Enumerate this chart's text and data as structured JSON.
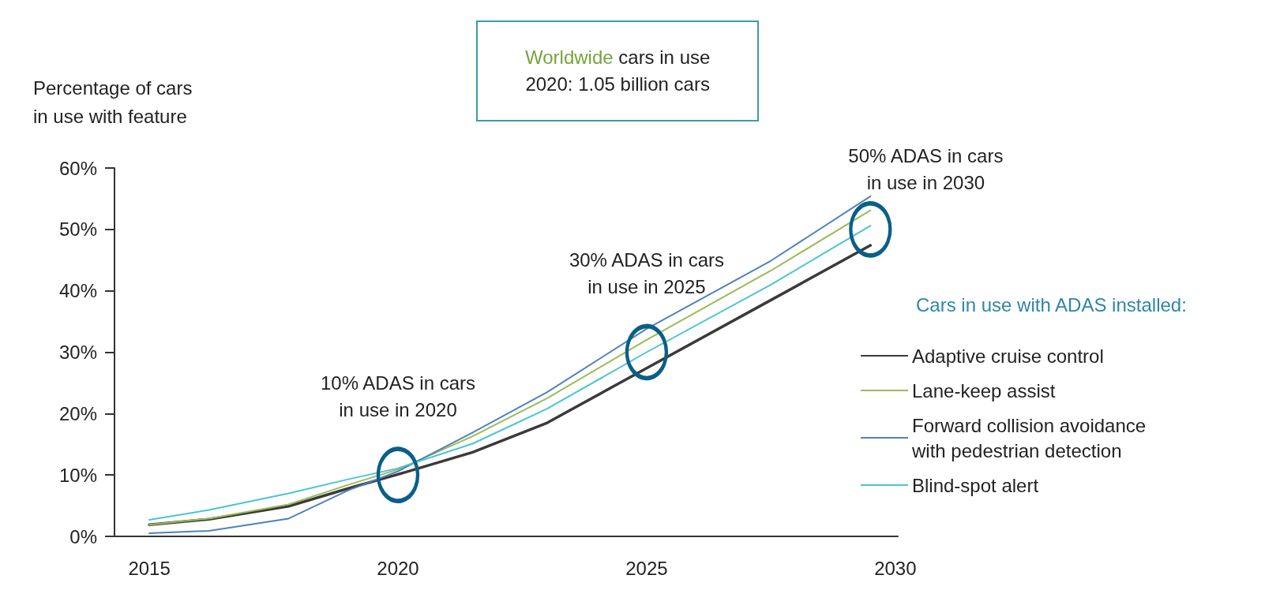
{
  "chart_data": {
    "type": "line",
    "ylabel": "Percentage of cars\nin use with feature",
    "legend_title": "Cars in use with ADAS installed:",
    "xlim": [
      2014.3,
      2030.05
    ],
    "xticks": [
      2015,
      2020,
      2025,
      2030
    ],
    "ylim": [
      0,
      60
    ],
    "yticks": [
      {
        "value": 0,
        "label": "0%"
      },
      {
        "value": 10,
        "label": "10%"
      },
      {
        "value": 20,
        "label": "20%"
      },
      {
        "value": 30,
        "label": "30%"
      },
      {
        "value": 40,
        "label": "40%"
      },
      {
        "value": 50,
        "label": "50%"
      },
      {
        "value": 60,
        "label": "60%"
      }
    ],
    "grid": false,
    "legend": "right",
    "marker": "none",
    "line_style": "solid",
    "x": [
      2015,
      2016.2,
      2017.8,
      2019,
      2020,
      2021.5,
      2023,
      2025,
      2027.5,
      2029.5
    ],
    "series": [
      {
        "name": "Adaptive cruise control",
        "color": "#3a3a3a",
        "values": [
          1.9,
          2.8,
          4.9,
          7.8,
          10.1,
          13.7,
          18.5,
          27.4,
          38.5,
          47.4
        ]
      },
      {
        "name": "Lane-keep assist",
        "color": "#9bbb59",
        "values": [
          1.9,
          2.9,
          5.2,
          8.4,
          10.9,
          16.3,
          22.5,
          32.0,
          43.3,
          53.1
        ]
      },
      {
        "name": "Forward collision avoidance\nwith pedestrian detection",
        "color": "#4f81bd",
        "values": [
          0.5,
          0.9,
          2.9,
          7.5,
          10.6,
          16.9,
          23.5,
          33.8,
          44.9,
          55.4
        ]
      },
      {
        "name": "Blind-spot alert",
        "color": "#4bc4d0",
        "values": [
          2.7,
          4.3,
          7.0,
          9.3,
          11.1,
          15.1,
          20.8,
          30.0,
          41.0,
          50.6
        ]
      }
    ],
    "annotations": [
      "Worldwide cars in use\n2020: 1.05 billion cars",
      {
        "text": "10% ADAS in cars\nin use in 2020",
        "x": 2020,
        "y": 10
      },
      {
        "text": "30% ADAS in cars\nin use in 2025",
        "x": 2025,
        "y": 30
      },
      {
        "text": "50% ADAS in cars\nin use in 2030",
        "x": 2029.5,
        "y": 50
      }
    ]
  }
}
